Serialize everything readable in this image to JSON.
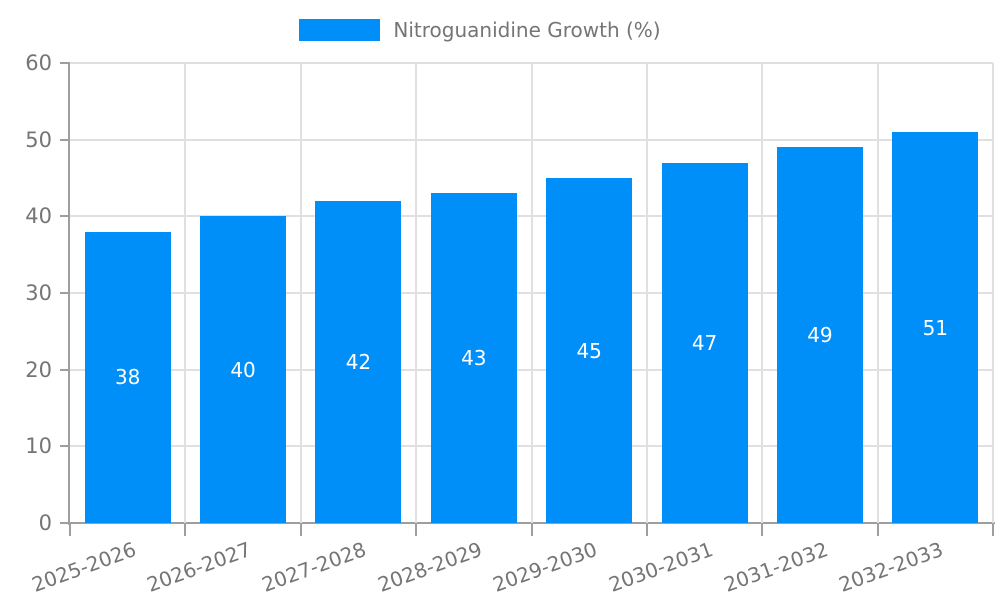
{
  "legend": {
    "label": "Nitroguanidine Growth (%)"
  },
  "chart_data": {
    "type": "bar",
    "title": "",
    "categories": [
      "2025-2026",
      "2026-2027",
      "2027-2028",
      "2028-2029",
      "2029-2030",
      "2030-2031",
      "2031-2032",
      "2032-2033"
    ],
    "series": [
      {
        "name": "Nitroguanidine Growth (%)",
        "values": [
          38,
          40,
          42,
          43,
          45,
          47,
          49,
          51
        ]
      }
    ],
    "xlabel": "",
    "ylabel": "",
    "ylim": [
      0,
      60
    ],
    "yticks": [
      0,
      10,
      20,
      30,
      40,
      50,
      60
    ],
    "grid": true,
    "legend_position": "top-center",
    "value_labels": "inside-center",
    "x_label_rotation_deg": -20,
    "colors": {
      "bar": "#008EF8",
      "grid": "#E0E0E0",
      "axis": "#9E9E9E",
      "tick_text": "#757575",
      "value_text": "#FFFFFF"
    }
  }
}
